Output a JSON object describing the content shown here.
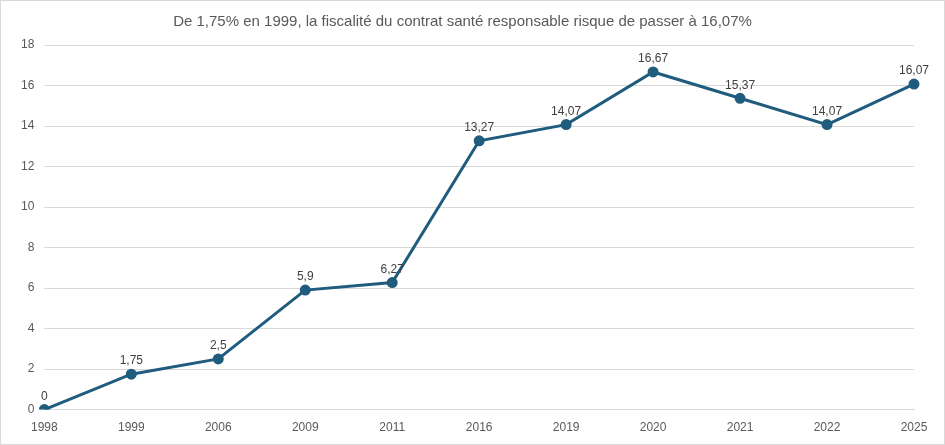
{
  "chart_data": {
    "type": "line",
    "title": "De 1,75% en 1999, la fiscalité du contrat santé responsable risque de passer à 16,07%",
    "categories": [
      "1998",
      "1999",
      "2006",
      "2009",
      "2011",
      "2016",
      "2019",
      "2020",
      "2021",
      "2022",
      "2025"
    ],
    "values": [
      0,
      1.75,
      2.5,
      5.9,
      6.27,
      13.27,
      14.07,
      16.67,
      15.37,
      14.07,
      16.07
    ],
    "value_labels": [
      "0",
      "1,75",
      "2,5",
      "5,9",
      "6,27",
      "13,27",
      "14,07",
      "16,67",
      "15,37",
      "14,07",
      "16,07"
    ],
    "data_labels": true,
    "color": "#1f5c7e",
    "marker": "circle",
    "line_style": "solid",
    "ylim": [
      0,
      18
    ],
    "yticks": [
      0,
      2,
      4,
      6,
      8,
      10,
      12,
      14,
      16,
      18
    ],
    "grid": true
  }
}
